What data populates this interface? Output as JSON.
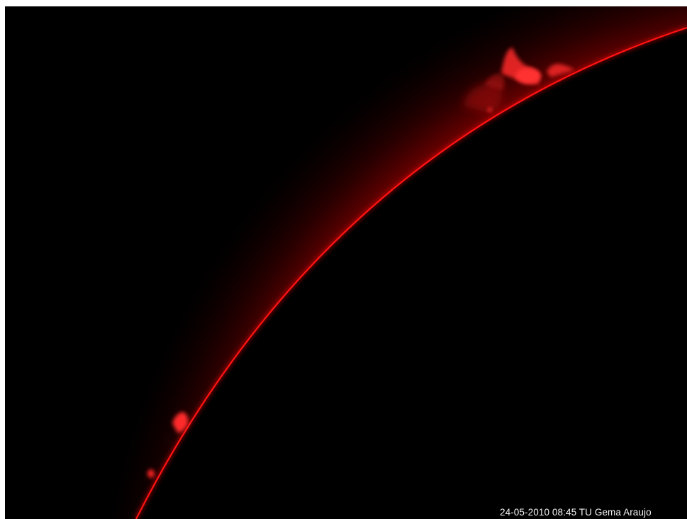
{
  "image": {
    "caption": "24-05-2010 08:45 TU  Gema Araujo",
    "colors": {
      "background": "#000000",
      "limb": "#ff1a1a",
      "glow": "#c00000",
      "prominence": "#ff2a2a",
      "caption": "#f2f2f2",
      "border": "#ffffff"
    }
  }
}
